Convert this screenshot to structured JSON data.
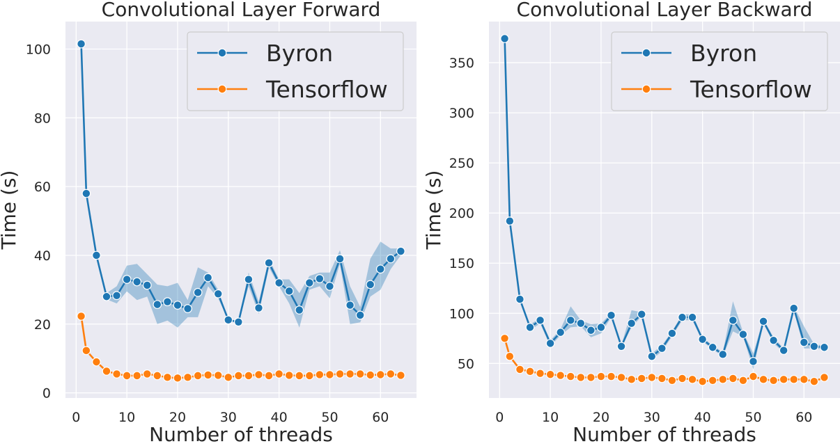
{
  "colors": {
    "byron": "#1f77b4",
    "tensorflow": "#ff7f0e",
    "byron_band": "#1f77b4",
    "background": "#eaeaf2"
  },
  "chart_data": [
    {
      "type": "line",
      "title": "Convolutional Layer Forward",
      "xlabel": "Number of threads",
      "ylabel": "Time (s)",
      "xlim": [
        -2.1,
        67.1
      ],
      "ylim": [
        -1.5,
        108
      ],
      "xticks": [
        0,
        10,
        20,
        30,
        40,
        50,
        60
      ],
      "yticks": [
        0,
        20,
        40,
        60,
        80,
        100
      ],
      "grid": true,
      "legend_position": "top-right",
      "x": [
        1,
        2,
        4,
        6,
        8,
        10,
        12,
        14,
        16,
        18,
        20,
        22,
        24,
        26,
        28,
        30,
        32,
        34,
        36,
        38,
        40,
        42,
        44,
        46,
        48,
        50,
        52,
        54,
        56,
        58,
        60,
        62,
        64
      ],
      "series": [
        {
          "name": "Byron",
          "color": "#1f77b4",
          "values": [
            101.5,
            58.0,
            40.0,
            28.0,
            28.3,
            33.0,
            32.3,
            31.3,
            25.7,
            26.5,
            25.5,
            24.5,
            29.2,
            33.5,
            28.8,
            21.2,
            20.6,
            33.0,
            24.7,
            37.8,
            32.0,
            29.6,
            24.1,
            32.0,
            33.2,
            31.0,
            39.0,
            25.5,
            22.6,
            31.5,
            36.0,
            39.0,
            41.2
          ],
          "ci_lower": [
            101.5,
            58.0,
            40.0,
            27.2,
            26.0,
            29.5,
            27.0,
            28.0,
            20.0,
            21.0,
            19.0,
            22.0,
            22.0,
            31.0,
            27.5,
            21.2,
            20.6,
            31.0,
            23.0,
            36.5,
            31.0,
            26.0,
            19.0,
            30.0,
            31.0,
            27.5,
            37.5,
            20.0,
            20.5,
            28.0,
            30.0,
            36.0,
            40.0
          ],
          "ci_upper": [
            101.5,
            58.0,
            40.0,
            29.0,
            31.0,
            37.0,
            37.5,
            34.5,
            31.5,
            31.0,
            32.0,
            27.0,
            36.5,
            35.0,
            30.0,
            21.2,
            20.6,
            35.0,
            26.5,
            39.0,
            33.0,
            33.0,
            29.0,
            34.0,
            35.0,
            35.0,
            41.5,
            31.0,
            25.0,
            39.0,
            44.0,
            42.0,
            42.0
          ]
        },
        {
          "name": "Tensorflow",
          "color": "#ff7f0e",
          "values": [
            22.3,
            12.3,
            9.0,
            6.3,
            5.5,
            5.0,
            5.0,
            5.5,
            5.0,
            4.5,
            4.3,
            4.5,
            5.0,
            5.2,
            5.1,
            4.5,
            5.0,
            5.0,
            5.3,
            5.0,
            5.5,
            5.1,
            5.0,
            5.0,
            5.3,
            5.3,
            5.5,
            5.5,
            5.5,
            5.2,
            5.3,
            5.5,
            5.1
          ]
        }
      ]
    },
    {
      "type": "line",
      "title": "Convolutional Layer Backward",
      "xlabel": "Number of threads",
      "ylabel": "Time (s)",
      "xlim": [
        -2.1,
        67.1
      ],
      "ylim": [
        15.5,
        391
      ],
      "xticks": [
        0,
        10,
        20,
        30,
        40,
        50,
        60
      ],
      "yticks": [
        50,
        100,
        150,
        200,
        250,
        300,
        350
      ],
      "grid": true,
      "legend_position": "top-right",
      "x": [
        1,
        2,
        4,
        6,
        8,
        10,
        12,
        14,
        16,
        18,
        20,
        22,
        24,
        26,
        28,
        30,
        32,
        34,
        36,
        38,
        40,
        42,
        44,
        46,
        48,
        50,
        52,
        54,
        56,
        58,
        60,
        62,
        64
      ],
      "series": [
        {
          "name": "Byron",
          "color": "#1f77b4",
          "values": [
            374,
            192,
            114,
            86,
            93,
            70,
            81,
            93,
            90,
            83,
            86,
            98,
            67,
            90,
            99,
            57,
            65,
            80,
            96,
            96,
            74,
            66,
            59,
            93,
            79,
            52,
            92,
            73,
            63,
            105,
            71,
            67,
            66
          ],
          "ci_lower": [
            374,
            192,
            114,
            83,
            90,
            67,
            78,
            86,
            87,
            76,
            80,
            96,
            66,
            86,
            97,
            54,
            62,
            77,
            93,
            93,
            72,
            64,
            57,
            82,
            77,
            44,
            90,
            70,
            61,
            103,
            65,
            65,
            64
          ],
          "ci_upper": [
            374,
            192,
            114,
            89,
            95,
            73,
            84,
            107,
            93,
            89,
            90,
            100,
            68,
            103,
            101,
            60,
            68,
            82,
            99,
            99,
            76,
            68,
            61,
            112,
            81,
            60,
            94,
            76,
            65,
            107,
            87,
            69,
            68
          ]
        },
        {
          "name": "Tensorflow",
          "color": "#ff7f0e",
          "values": [
            75,
            57,
            44,
            42,
            40,
            39,
            38,
            37,
            36,
            36,
            37,
            37,
            36,
            34,
            35,
            36,
            35,
            33,
            35,
            34,
            32,
            33,
            34,
            35,
            33,
            37,
            34,
            33,
            34,
            34,
            34,
            32,
            36
          ]
        }
      ]
    }
  ]
}
